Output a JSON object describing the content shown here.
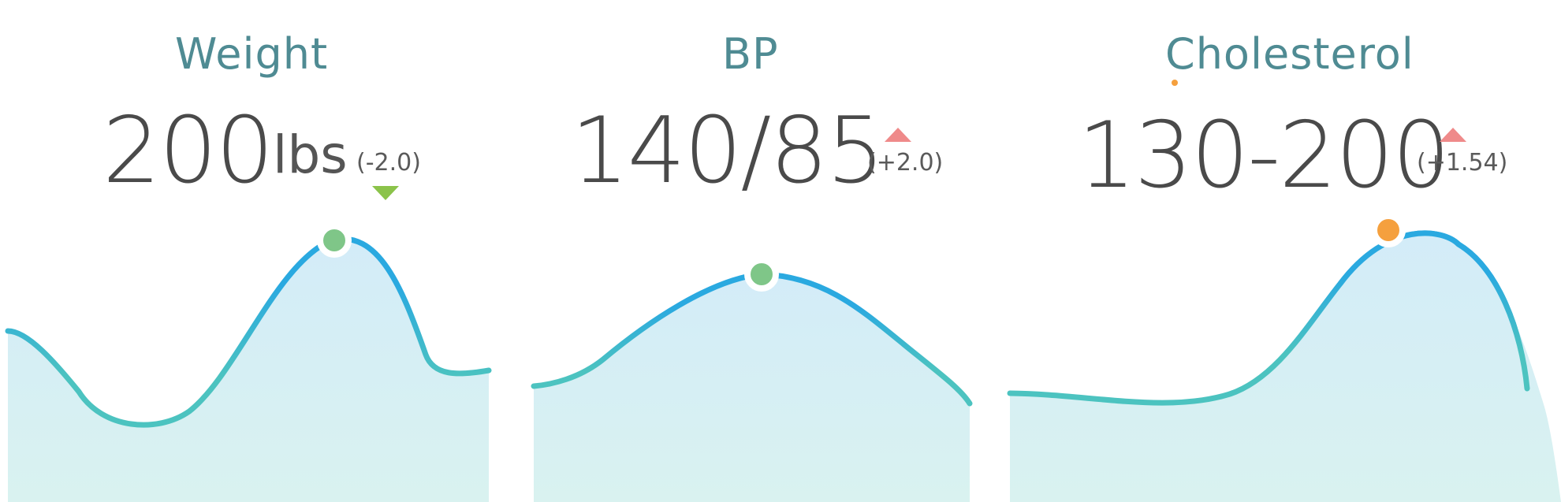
{
  "colors": {
    "title": "#4f8b93",
    "value": "#4a4a4a",
    "line_top": "#2aa9e0",
    "line_bottom": "#4cc3c0",
    "area_top": "#d3ecf8",
    "area_bottom": "#d9f2f0",
    "marker_green": "#7fc688",
    "marker_orange": "#f5a03e",
    "trend_down": "#8bc34a",
    "trend_up": "#ef8a8a"
  },
  "metrics": [
    {
      "title": "Weight",
      "value": "200",
      "unit": "lbs",
      "change": "(-2.0)",
      "trend_icon": "triangle-down-icon",
      "trend": "down",
      "marker_color": "green"
    },
    {
      "title": "BP",
      "value": "140/85",
      "change": "(+2.0)",
      "trend_icon": "triangle-up-icon",
      "trend": "up",
      "marker_color": "green"
    },
    {
      "title": "Cholesterol",
      "value": "130-200",
      "change": "(+1.54)",
      "trend_icon": "triangle-up-icon",
      "trend": "up",
      "marker_color": "orange",
      "alert_icon": "orange-dot-icon"
    }
  ]
}
